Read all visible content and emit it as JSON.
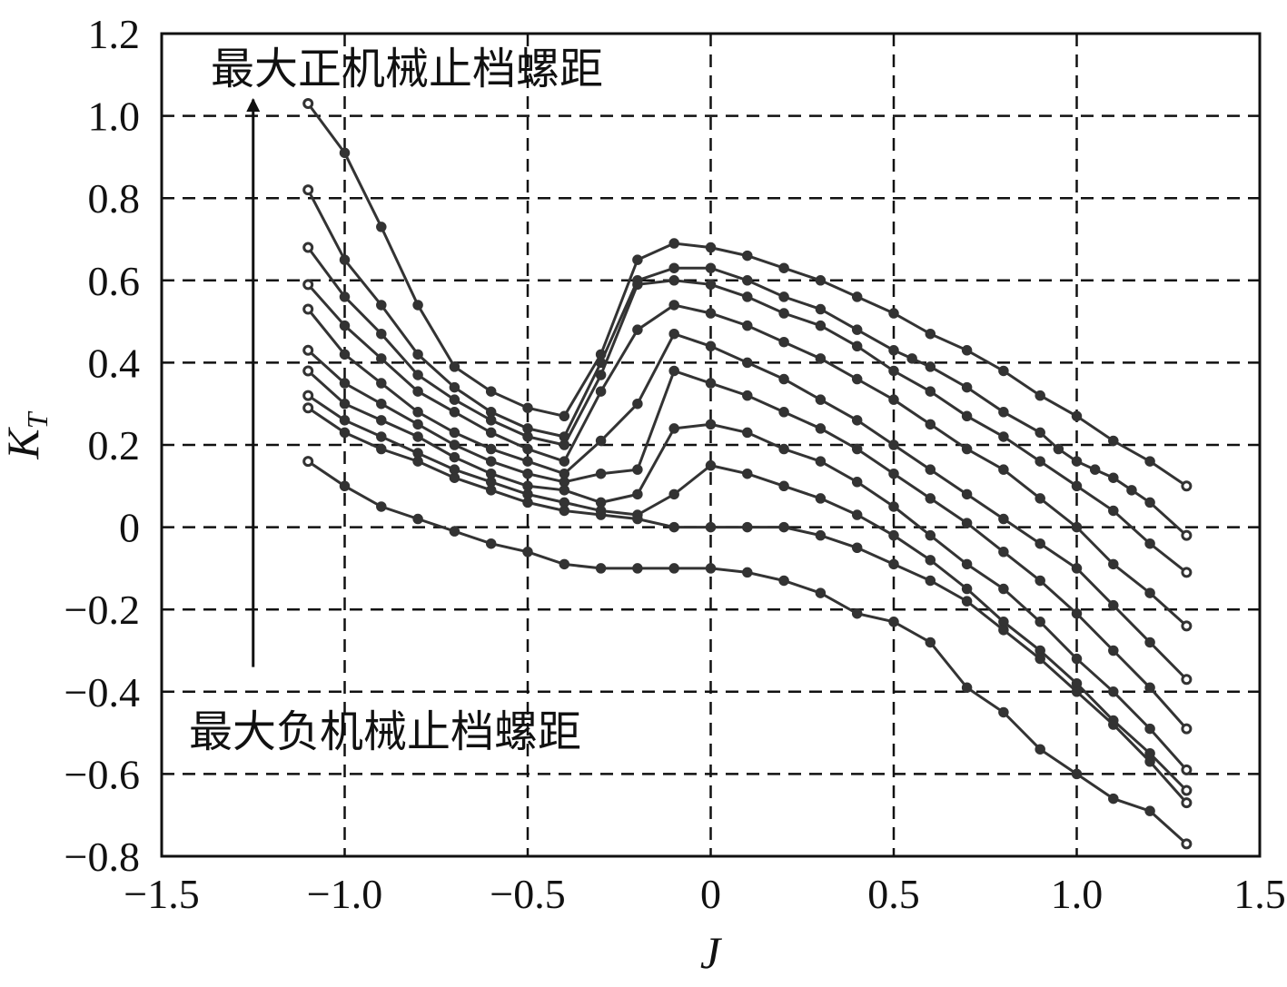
{
  "chart_data": {
    "type": "line",
    "title": "",
    "xlabel": "J",
    "ylabel_main": "K",
    "ylabel_sub": "T",
    "xlim": [
      -1.5,
      1.5
    ],
    "ylim": [
      -0.8,
      1.2
    ],
    "grid": true,
    "grid_style": "dashed",
    "xticks": [
      -1.5,
      -1.0,
      -0.5,
      0,
      0.5,
      1.0,
      1.5
    ],
    "xtick_labels": [
      "−1.5",
      "−1.0",
      "−0.5",
      "0",
      "0.5",
      "1.0",
      "1.5"
    ],
    "yticks": [
      -0.8,
      -0.6,
      -0.4,
      -0.2,
      0,
      0.2,
      0.4,
      0.6,
      0.8,
      1.0,
      1.2
    ],
    "ytick_labels": [
      "−0.8",
      "−0.6",
      "−0.4",
      "−0.2",
      "0",
      "0.2",
      "0.4",
      "0.6",
      "0.8",
      "1.0",
      "1.2"
    ],
    "annotations": {
      "top": "最大正机械止档螺距",
      "bottom": "最大负机械止档螺距",
      "arrow": {
        "from": [
          -1.25,
          -0.34
        ],
        "to": [
          -1.25,
          1.04
        ]
      }
    },
    "series": [
      {
        "x": [
          -1.1,
          -1.0,
          -0.9,
          -0.8,
          -0.7,
          -0.6,
          -0.5,
          -0.4,
          -0.3,
          -0.2,
          -0.1,
          0,
          0.1,
          0.2,
          0.3,
          0.4,
          0.5,
          0.6,
          0.7,
          0.8,
          0.9,
          1.0,
          1.1,
          1.2,
          1.3
        ],
        "y": [
          1.03,
          0.91,
          0.73,
          0.54,
          0.39,
          0.33,
          0.29,
          0.27,
          0.42,
          0.65,
          0.69,
          0.68,
          0.66,
          0.63,
          0.6,
          0.56,
          0.52,
          0.47,
          0.43,
          0.38,
          0.32,
          0.27,
          0.21,
          0.16,
          0.1
        ]
      },
      {
        "x": [
          -1.1,
          -1.0,
          -0.9,
          -0.8,
          -0.7,
          -0.6,
          -0.5,
          -0.4,
          -0.3,
          -0.2,
          -0.1,
          0,
          0.1,
          0.2,
          0.3,
          0.4,
          0.5,
          0.55,
          0.6,
          0.7,
          0.8,
          0.9,
          0.95,
          1.0,
          1.05,
          1.1,
          1.15,
          1.2,
          1.3
        ],
        "y": [
          0.82,
          0.65,
          0.54,
          0.42,
          0.34,
          0.28,
          0.24,
          0.22,
          0.4,
          0.6,
          0.63,
          0.63,
          0.6,
          0.56,
          0.53,
          0.48,
          0.43,
          0.41,
          0.39,
          0.34,
          0.28,
          0.23,
          0.19,
          0.16,
          0.14,
          0.12,
          0.09,
          0.06,
          -0.02
        ]
      },
      {
        "x": [
          -1.1,
          -1.0,
          -0.9,
          -0.8,
          -0.7,
          -0.6,
          -0.5,
          -0.4,
          -0.3,
          -0.2,
          -0.1,
          0,
          0.1,
          0.2,
          0.3,
          0.4,
          0.5,
          0.6,
          0.7,
          0.8,
          0.9,
          1.0,
          1.1,
          1.2,
          1.3
        ],
        "y": [
          0.68,
          0.56,
          0.47,
          0.37,
          0.31,
          0.26,
          0.22,
          0.2,
          0.37,
          0.59,
          0.6,
          0.59,
          0.56,
          0.52,
          0.49,
          0.44,
          0.38,
          0.33,
          0.27,
          0.22,
          0.16,
          0.1,
          0.04,
          -0.04,
          -0.11
        ]
      },
      {
        "x": [
          -1.1,
          -1.0,
          -0.9,
          -0.8,
          -0.7,
          -0.6,
          -0.5,
          -0.4,
          -0.3,
          -0.2,
          -0.1,
          0,
          0.1,
          0.2,
          0.3,
          0.4,
          0.5,
          0.6,
          0.7,
          0.8,
          0.9,
          1.0,
          1.1,
          1.2,
          1.3
        ],
        "y": [
          0.59,
          0.49,
          0.41,
          0.33,
          0.28,
          0.23,
          0.19,
          0.16,
          0.33,
          0.48,
          0.54,
          0.52,
          0.49,
          0.45,
          0.41,
          0.36,
          0.31,
          0.25,
          0.19,
          0.14,
          0.07,
          0.0,
          -0.09,
          -0.16,
          -0.24
        ]
      },
      {
        "x": [
          -1.1,
          -1.0,
          -0.9,
          -0.8,
          -0.7,
          -0.6,
          -0.5,
          -0.4,
          -0.3,
          -0.2,
          -0.1,
          0,
          0.1,
          0.2,
          0.3,
          0.4,
          0.5,
          0.6,
          0.7,
          0.8,
          0.9,
          1.0,
          1.1,
          1.2,
          1.3
        ],
        "y": [
          0.53,
          0.42,
          0.35,
          0.28,
          0.23,
          0.19,
          0.16,
          0.13,
          0.21,
          0.3,
          0.47,
          0.44,
          0.4,
          0.36,
          0.31,
          0.26,
          0.2,
          0.14,
          0.08,
          0.02,
          -0.04,
          -0.1,
          -0.19,
          -0.28,
          -0.37
        ]
      },
      {
        "x": [
          -1.1,
          -1.0,
          -0.9,
          -0.8,
          -0.7,
          -0.6,
          -0.5,
          -0.4,
          -0.3,
          -0.2,
          -0.1,
          0,
          0.1,
          0.2,
          0.3,
          0.4,
          0.5,
          0.6,
          0.7,
          0.8,
          0.9,
          1.0,
          1.1,
          1.2,
          1.3
        ],
        "y": [
          0.43,
          0.35,
          0.3,
          0.25,
          0.2,
          0.16,
          0.13,
          0.11,
          0.13,
          0.14,
          0.38,
          0.35,
          0.32,
          0.28,
          0.24,
          0.19,
          0.13,
          0.07,
          0.01,
          -0.06,
          -0.13,
          -0.21,
          -0.3,
          -0.39,
          -0.49
        ]
      },
      {
        "x": [
          -1.1,
          -1.0,
          -0.9,
          -0.8,
          -0.7,
          -0.6,
          -0.5,
          -0.4,
          -0.3,
          -0.2,
          -0.1,
          0,
          0.1,
          0.2,
          0.3,
          0.4,
          0.5,
          0.6,
          0.7,
          0.8,
          0.9,
          1.0,
          1.1,
          1.2,
          1.3
        ],
        "y": [
          0.38,
          0.3,
          0.26,
          0.22,
          0.17,
          0.13,
          0.1,
          0.09,
          0.06,
          0.08,
          0.24,
          0.25,
          0.23,
          0.19,
          0.16,
          0.11,
          0.05,
          -0.02,
          -0.09,
          -0.15,
          -0.23,
          -0.32,
          -0.4,
          -0.49,
          -0.59
        ]
      },
      {
        "x": [
          -1.1,
          -1.0,
          -0.9,
          -0.8,
          -0.7,
          -0.6,
          -0.5,
          -0.4,
          -0.3,
          -0.2,
          -0.1,
          0,
          0.1,
          0.2,
          0.3,
          0.4,
          0.5,
          0.6,
          0.7,
          0.8,
          0.9,
          1.0,
          1.1,
          1.2,
          1.3
        ],
        "y": [
          0.32,
          0.26,
          0.22,
          0.18,
          0.14,
          0.11,
          0.08,
          0.06,
          0.04,
          0.03,
          0.08,
          0.15,
          0.13,
          0.1,
          0.07,
          0.03,
          -0.02,
          -0.08,
          -0.15,
          -0.23,
          -0.3,
          -0.38,
          -0.47,
          -0.55,
          -0.64
        ]
      },
      {
        "x": [
          -1.1,
          -1.0,
          -0.9,
          -0.8,
          -0.7,
          -0.6,
          -0.5,
          -0.4,
          -0.3,
          -0.2,
          -0.1,
          0,
          0.1,
          0.2,
          0.3,
          0.4,
          0.5,
          0.6,
          0.7,
          0.8,
          0.9,
          1.0,
          1.1,
          1.2,
          1.3
        ],
        "y": [
          0.29,
          0.23,
          0.19,
          0.16,
          0.12,
          0.09,
          0.06,
          0.04,
          0.03,
          0.02,
          0.0,
          0.0,
          0.0,
          0.0,
          -0.02,
          -0.05,
          -0.09,
          -0.13,
          -0.18,
          -0.25,
          -0.32,
          -0.4,
          -0.48,
          -0.57,
          -0.67
        ]
      },
      {
        "x": [
          -1.1,
          -1.0,
          -0.9,
          -0.8,
          -0.7,
          -0.6,
          -0.5,
          -0.4,
          -0.3,
          -0.2,
          -0.1,
          0,
          0.1,
          0.2,
          0.3,
          0.4,
          0.5,
          0.6,
          0.7,
          0.8,
          0.9,
          1.0,
          1.1,
          1.2,
          1.3
        ],
        "y": [
          0.16,
          0.1,
          0.05,
          0.02,
          -0.01,
          -0.04,
          -0.06,
          -0.09,
          -0.1,
          -0.1,
          -0.1,
          -0.1,
          -0.11,
          -0.13,
          -0.16,
          -0.21,
          -0.23,
          -0.28,
          -0.39,
          -0.45,
          -0.54,
          -0.6,
          -0.66,
          -0.69,
          -0.77
        ]
      }
    ]
  }
}
